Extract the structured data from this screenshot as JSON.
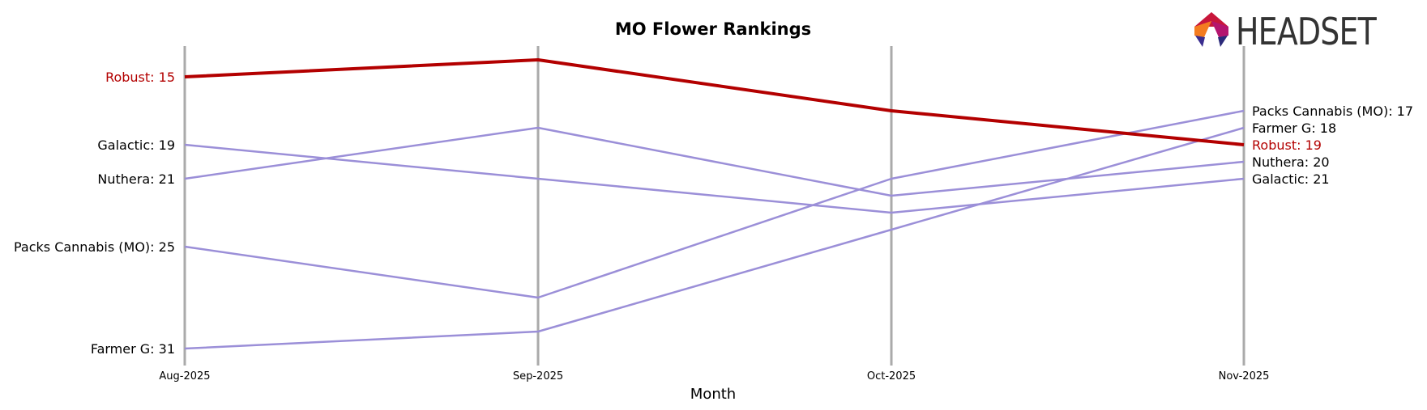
{
  "chart_data": {
    "type": "line",
    "title": "MO Flower Rankings",
    "xlabel": "Month",
    "ylabel": "",
    "x": [
      "Aug-2025",
      "Sep-2025",
      "Oct-2025",
      "Nov-2025"
    ],
    "y_inverted": true,
    "ylim": [
      32.0,
      13.0
    ],
    "series": [
      {
        "name": "Robust",
        "values": [
          15,
          14,
          17,
          19
        ],
        "highlight": true
      },
      {
        "name": "Galactic",
        "values": [
          19,
          21,
          23,
          21
        ],
        "highlight": false
      },
      {
        "name": "Nuthera",
        "values": [
          21,
          18,
          22,
          20
        ],
        "highlight": false
      },
      {
        "name": "Packs Cannabis (MO)",
        "values": [
          25,
          28,
          21,
          17
        ],
        "highlight": false
      },
      {
        "name": "Farmer G",
        "values": [
          31,
          30,
          24,
          18
        ],
        "highlight": false
      }
    ],
    "left_labels": [
      {
        "text": "Robust: 15",
        "series": "Robust"
      },
      {
        "text": "Galactic: 19",
        "series": "Galactic"
      },
      {
        "text": "Nuthera: 21",
        "series": "Nuthera"
      },
      {
        "text": "Packs Cannabis (MO): 25",
        "series": "Packs Cannabis (MO)"
      },
      {
        "text": "Farmer G: 31",
        "series": "Farmer G"
      }
    ],
    "right_labels": [
      {
        "text": "Packs Cannabis (MO): 17",
        "series": "Packs Cannabis (MO)"
      },
      {
        "text": "Farmer G: 18",
        "series": "Farmer G"
      },
      {
        "text": "Robust: 19",
        "series": "Robust"
      },
      {
        "text": "Nuthera: 20",
        "series": "Nuthera"
      },
      {
        "text": "Galactic: 21",
        "series": "Galactic"
      }
    ],
    "grid": "vertical"
  },
  "colors": {
    "highlight": "#b30000",
    "other": "#9b8fd8",
    "gridline": "#aaaaaa",
    "text": "#000000"
  },
  "logo": {
    "text": "HEADSET",
    "icon": "headset-hexagon-logo-icon"
  }
}
